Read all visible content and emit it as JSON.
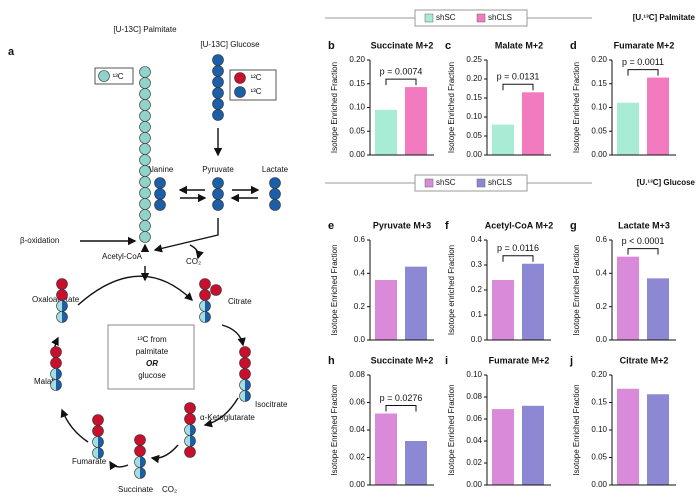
{
  "diagram": {
    "panel": "a",
    "labels": {
      "palmitate": "[U-13C] Palmitate",
      "key_13c_a": "¹³C",
      "glucose": "[U-13C] Glucose",
      "key_12c": "¹²C",
      "key_13c_b": "¹³C",
      "alanine": "Alanine",
      "pyruvate": "Pyruvate",
      "lactate": "Lactate",
      "beta_ox": "β-oxidation",
      "acetylcoa": "Acetyl-CoA",
      "co2_a": "CO₂",
      "oxaloacetate": "Oxaloacetate",
      "citrate": "Citrate",
      "malate": "Malate",
      "isocitrate": "Isocitrate",
      "akg": "α-Ketoglutarate",
      "fumarate": "Fumarate",
      "succinate": "Succinate",
      "co2_b": "CO₂",
      "box_1": "¹³C from",
      "box_2": "palmitate",
      "box_3": "OR",
      "box_4": "glucose"
    }
  },
  "sections": [
    {
      "title": "[U.¹³C] Palmitate",
      "legend": [
        {
          "name": "shSC",
          "color": "#a8ecd6"
        },
        {
          "name": "shCLS",
          "color": "#f27bc0"
        }
      ]
    },
    {
      "title": "[U.¹³C] Glucose",
      "legend": [
        {
          "name": "shSC",
          "color": "#d98ad8"
        },
        {
          "name": "shCLS",
          "color": "#8c88d4"
        }
      ]
    }
  ],
  "chart_data": [
    {
      "type": "bar",
      "panel": "b",
      "title": "Succinate M+2",
      "ylabel": "Isotope Enriched Fraction",
      "annotation": "p = 0.0074",
      "series": [
        {
          "color": "#a8ecd6",
          "values": [
            0.095
          ]
        },
        {
          "color": "#f27bc0",
          "values": [
            0.143
          ]
        }
      ],
      "ylim": [
        0,
        0.2
      ],
      "yticks": [
        {
          "value": 0,
          "label": "0.00"
        },
        0.05,
        {
          "value": 0.1,
          "label": "0.10"
        },
        0.15,
        {
          "value": 0.2,
          "label": "0.20"
        }
      ]
    },
    {
      "type": "bar",
      "panel": "c",
      "title": "Malate M+2",
      "ylabel": "Isotope Enriched Fraction",
      "annotation": "p = 0.0131",
      "series": [
        {
          "color": "#a8ecd6",
          "values": [
            0.08
          ]
        },
        {
          "color": "#f27bc0",
          "values": [
            0.165
          ]
        }
      ],
      "ylim": [
        0,
        0.25
      ],
      "yticks": [
        {
          "value": 0,
          "label": "0.00"
        },
        0.05,
        {
          "value": 0.1,
          "label": "0.10"
        },
        0.15,
        {
          "value": 0.2,
          "label": "0.20"
        },
        0.25
      ]
    },
    {
      "type": "bar",
      "panel": "d",
      "title": "Fumarate M+2",
      "ylabel": "Isotope Enriched Fraction",
      "annotation": "p = 0.0011",
      "series": [
        {
          "color": "#a8ecd6",
          "values": [
            0.11
          ]
        },
        {
          "color": "#f27bc0",
          "values": [
            0.163
          ]
        }
      ],
      "ylim": [
        0,
        0.2
      ],
      "yticks": [
        {
          "value": 0,
          "label": "0.00"
        },
        0.05,
        {
          "value": 0.1,
          "label": "0.10"
        },
        0.15,
        {
          "value": 0.2,
          "label": "0.20"
        }
      ]
    },
    {
      "type": "bar",
      "panel": "e",
      "title": "Pyruvate M+3",
      "ylabel": "Isotope Enriched Fraction",
      "series": [
        {
          "color": "#d98ad8",
          "values": [
            0.36
          ]
        },
        {
          "color": "#8c88d4",
          "values": [
            0.44
          ]
        }
      ],
      "ylim": [
        0,
        0.6
      ],
      "yticks": [
        {
          "value": 0,
          "label": "0.0"
        },
        0.2,
        0.4,
        0.6
      ]
    },
    {
      "type": "bar",
      "panel": "f",
      "title": "Acetyl-CoA M+2",
      "ylabel": "Isotope enriched Fraction",
      "annotation": "p = 0.0116",
      "series": [
        {
          "color": "#d98ad8",
          "values": [
            0.24
          ]
        },
        {
          "color": "#8c88d4",
          "values": [
            0.305
          ]
        }
      ],
      "ylim": [
        0,
        0.4
      ],
      "yticks": [
        {
          "value": 0,
          "label": "0.0"
        },
        0.1,
        0.2,
        0.3,
        0.4
      ]
    },
    {
      "type": "bar",
      "panel": "g",
      "title": "Lactate M+3",
      "ylabel": "Isotope Enriched Fraction",
      "annotation": "p < 0.0001",
      "series": [
        {
          "color": "#d98ad8",
          "values": [
            0.5
          ]
        },
        {
          "color": "#8c88d4",
          "values": [
            0.37
          ]
        }
      ],
      "ylim": [
        0,
        0.6
      ],
      "yticks": [
        {
          "value": 0,
          "label": "0.0"
        },
        0.2,
        0.4,
        0.6
      ]
    },
    {
      "type": "bar",
      "panel": "h",
      "title": "Succinate M+2",
      "ylabel": "Isotope Enriched Fraction",
      "annotation": "p = 0.0276",
      "series": [
        {
          "color": "#d98ad8",
          "values": [
            0.052
          ]
        },
        {
          "color": "#8c88d4",
          "values": [
            0.032
          ]
        }
      ],
      "ylim": [
        0,
        0.08
      ],
      "yticks": [
        {
          "value": 0,
          "label": "0.00"
        },
        0.02,
        0.04,
        0.06,
        0.08
      ]
    },
    {
      "type": "bar",
      "panel": "i",
      "title": "Fumarate M+2",
      "ylabel": "Isotope Enriched Fraction",
      "series": [
        {
          "color": "#d98ad8",
          "values": [
            0.069
          ]
        },
        {
          "color": "#8c88d4",
          "values": [
            0.072
          ]
        }
      ],
      "ylim": [
        0,
        0.1
      ],
      "yticks": [
        {
          "value": 0,
          "label": "0.00"
        },
        0.02,
        0.04,
        0.06,
        0.08,
        {
          "value": 0.1,
          "label": "0.10"
        }
      ]
    },
    {
      "type": "bar",
      "panel": "j",
      "title": "Citrate M+2",
      "ylabel": "Isotope Enriched Fraction",
      "series": [
        {
          "color": "#d98ad8",
          "values": [
            0.175
          ]
        },
        {
          "color": "#8c88d4",
          "values": [
            0.165
          ]
        }
      ],
      "ylim": [
        0,
        0.2
      ],
      "yticks": [
        {
          "value": 0,
          "label": "0.00"
        },
        0.05,
        {
          "value": 0.1,
          "label": "0.10"
        },
        0.15,
        {
          "value": 0.2,
          "label": "0.20"
        }
      ]
    }
  ]
}
